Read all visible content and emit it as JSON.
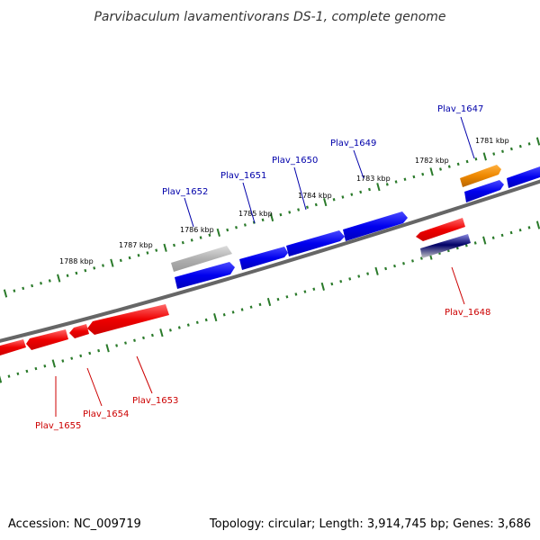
{
  "title": "Parvibaculum lavamentivorans DS-1, complete genome",
  "footer": {
    "accession": "Accession: NC_009719",
    "summary": "Topology: circular; Length: 3,914,745 bp; Genes: 3,686"
  },
  "colors": {
    "forward_gene": "#0000ee",
    "reverse_gene": "#ee0000",
    "label_forward": "#0000aa",
    "label_reverse": "#cc0000",
    "backbone": "#777777",
    "ruler_tick": "#2a7a2a",
    "highlight_orange": "#ee8800",
    "pseudo_gray": "#aaaaaa",
    "navy": "#000066"
  },
  "ruler_labels": [
    "1781 kbp",
    "1782 kbp",
    "1783 kbp",
    "1784 kbp",
    "1785 kbp",
    "1786 kbp",
    "1787 kbp",
    "1788 kbp"
  ],
  "gene_labels": {
    "forward": [
      "Plav_1647",
      "Plav_1649",
      "Plav_1650",
      "Plav_1651",
      "Plav_1652"
    ],
    "reverse": [
      "Plav_1648",
      "Plav_1653",
      "Plav_1654",
      "Plav_1655"
    ]
  }
}
